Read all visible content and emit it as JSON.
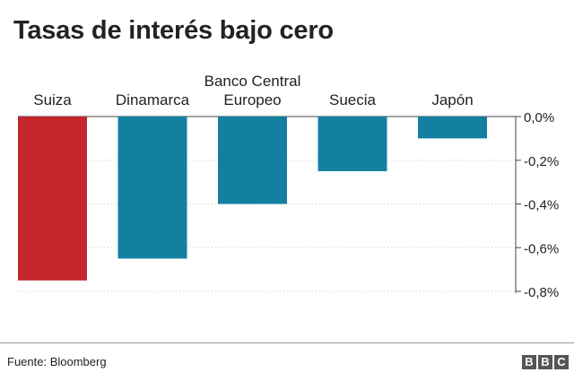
{
  "title": "Tasas de interés bajo cero",
  "source": "Fuente: Bloomberg",
  "logo": [
    "B",
    "B",
    "C"
  ],
  "colors": {
    "highlight": "#c4262e",
    "bar": "#1380a1",
    "text": "#222222",
    "grid": "#cccccc"
  },
  "chart_data": {
    "type": "bar",
    "title": "Tasas de interés bajo cero",
    "categories": [
      [
        "Suiza"
      ],
      [
        "Dinamarca"
      ],
      [
        "Banco Central",
        "Europeo"
      ],
      [
        "Suecia"
      ],
      [
        "Japón"
      ]
    ],
    "values": [
      -0.75,
      -0.65,
      -0.4,
      -0.25,
      -0.1
    ],
    "highlight_index": 0,
    "ylim": [
      -0.8,
      0
    ],
    "yticks": [
      0,
      -0.2,
      -0.4,
      -0.6,
      -0.8
    ],
    "ytick_labels": [
      "0,0%",
      "-0,2%",
      "-0,4%",
      "-0,6%",
      "-0,8%"
    ],
    "grid": true,
    "xlabel": "",
    "ylabel": ""
  }
}
